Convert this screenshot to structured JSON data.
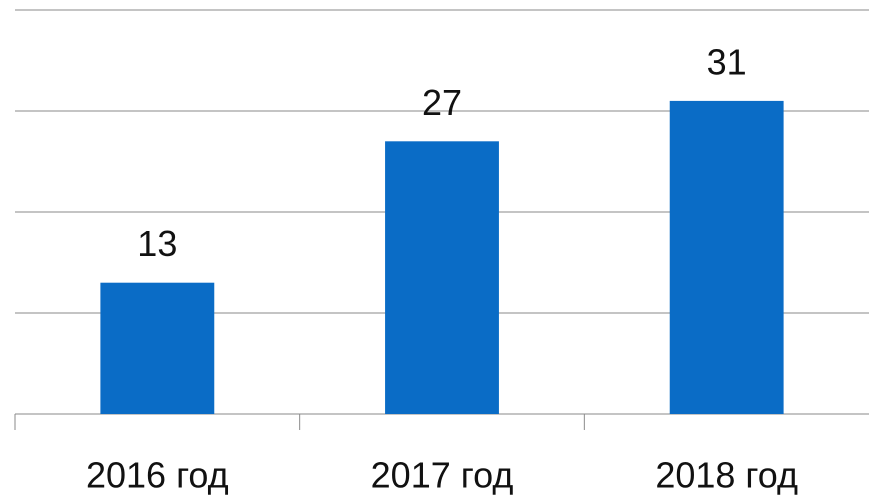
{
  "chart_data": {
    "type": "bar",
    "categories": [
      "2016 год",
      "2017 год",
      "2018 год"
    ],
    "values": [
      13,
      27,
      31
    ],
    "color": "#0a6cc6",
    "ylim": [
      0,
      40
    ],
    "yticks": [
      0,
      10,
      20,
      30,
      40
    ],
    "grid": true
  }
}
